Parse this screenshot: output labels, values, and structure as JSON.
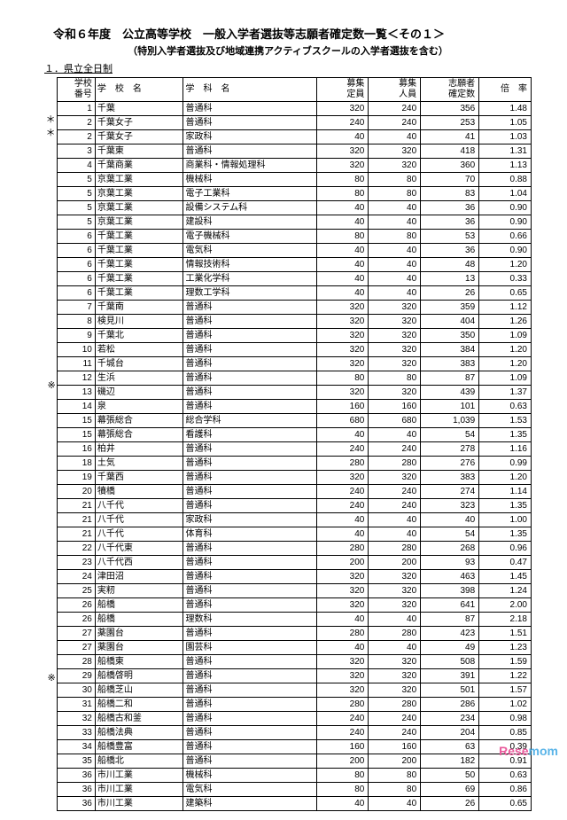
{
  "title": "令和６年度　公立高等学校　一般入学者選抜等志願者確定数一覧＜その１＞",
  "subtitle": "（特別入学者選抜及び地域連携アクティブスクールの入学者選抜を含む）",
  "section": "１．県立全日制",
  "headers": {
    "num": "学校\n番号",
    "school": "学　校　名",
    "dept": "学　科　名",
    "cap": "募集\n定員",
    "rec": "募集\n人員",
    "app": "志願者\n確定数",
    "rate": "倍　率"
  },
  "rows": [
    {
      "mark": "",
      "num": "1",
      "school": "千葉",
      "dept": "普通科",
      "cap": "320",
      "rec": "240",
      "app": "356",
      "rate": "1.48"
    },
    {
      "mark": "＊",
      "num": "2",
      "school": "千葉女子",
      "dept": "普通科",
      "cap": "240",
      "rec": "240",
      "app": "253",
      "rate": "1.05"
    },
    {
      "mark": "＊",
      "num": "2",
      "school": "千葉女子",
      "dept": "家政科",
      "cap": "40",
      "rec": "40",
      "app": "41",
      "rate": "1.03"
    },
    {
      "mark": "",
      "num": "3",
      "school": "千葉東",
      "dept": "普通科",
      "cap": "320",
      "rec": "320",
      "app": "418",
      "rate": "1.31"
    },
    {
      "mark": "",
      "num": "4",
      "school": "千葉商業",
      "dept": "商業科・情報処理科",
      "cap": "320",
      "rec": "320",
      "app": "360",
      "rate": "1.13"
    },
    {
      "mark": "",
      "num": "5",
      "school": "京葉工業",
      "dept": "機械科",
      "cap": "80",
      "rec": "80",
      "app": "70",
      "rate": "0.88"
    },
    {
      "mark": "",
      "num": "5",
      "school": "京葉工業",
      "dept": "電子工業科",
      "cap": "80",
      "rec": "80",
      "app": "83",
      "rate": "1.04"
    },
    {
      "mark": "",
      "num": "5",
      "school": "京葉工業",
      "dept": "設備システム科",
      "cap": "40",
      "rec": "40",
      "app": "36",
      "rate": "0.90"
    },
    {
      "mark": "",
      "num": "5",
      "school": "京葉工業",
      "dept": "建設科",
      "cap": "40",
      "rec": "40",
      "app": "36",
      "rate": "0.90"
    },
    {
      "mark": "",
      "num": "6",
      "school": "千葉工業",
      "dept": "電子機械科",
      "cap": "80",
      "rec": "80",
      "app": "53",
      "rate": "0.66"
    },
    {
      "mark": "",
      "num": "6",
      "school": "千葉工業",
      "dept": "電気科",
      "cap": "40",
      "rec": "40",
      "app": "36",
      "rate": "0.90"
    },
    {
      "mark": "",
      "num": "6",
      "school": "千葉工業",
      "dept": "情報技術科",
      "cap": "40",
      "rec": "40",
      "app": "48",
      "rate": "1.20"
    },
    {
      "mark": "",
      "num": "6",
      "school": "千葉工業",
      "dept": "工業化学科",
      "cap": "40",
      "rec": "40",
      "app": "13",
      "rate": "0.33"
    },
    {
      "mark": "",
      "num": "6",
      "school": "千葉工業",
      "dept": "理数工学科",
      "cap": "40",
      "rec": "40",
      "app": "26",
      "rate": "0.65"
    },
    {
      "mark": "",
      "num": "7",
      "school": "千葉南",
      "dept": "普通科",
      "cap": "320",
      "rec": "320",
      "app": "359",
      "rate": "1.12"
    },
    {
      "mark": "",
      "num": "8",
      "school": "検見川",
      "dept": "普通科",
      "cap": "320",
      "rec": "320",
      "app": "404",
      "rate": "1.26"
    },
    {
      "mark": "",
      "num": "9",
      "school": "千葉北",
      "dept": "普通科",
      "cap": "320",
      "rec": "320",
      "app": "350",
      "rate": "1.09"
    },
    {
      "mark": "",
      "num": "10",
      "school": "若松",
      "dept": "普通科",
      "cap": "320",
      "rec": "320",
      "app": "384",
      "rate": "1.20"
    },
    {
      "mark": "",
      "num": "11",
      "school": "千城台",
      "dept": "普通科",
      "cap": "320",
      "rec": "320",
      "app": "383",
      "rate": "1.20"
    },
    {
      "mark": "",
      "num": "12",
      "school": "生浜",
      "dept": "普通科",
      "cap": "80",
      "rec": "80",
      "app": "87",
      "rate": "1.09"
    },
    {
      "mark": "",
      "num": "13",
      "school": "磯辺",
      "dept": "普通科",
      "cap": "320",
      "rec": "320",
      "app": "439",
      "rate": "1.37"
    },
    {
      "mark": "※",
      "num": "14",
      "school": "泉",
      "dept": "普通科",
      "cap": "160",
      "rec": "160",
      "app": "101",
      "rate": "0.63"
    },
    {
      "mark": "",
      "num": "15",
      "school": "幕張総合",
      "dept": "総合学科",
      "cap": "680",
      "rec": "680",
      "app": "1,039",
      "rate": "1.53"
    },
    {
      "mark": "",
      "num": "15",
      "school": "幕張総合",
      "dept": "看護科",
      "cap": "40",
      "rec": "40",
      "app": "54",
      "rate": "1.35"
    },
    {
      "mark": "",
      "num": "16",
      "school": "柏井",
      "dept": "普通科",
      "cap": "240",
      "rec": "240",
      "app": "278",
      "rate": "1.16"
    },
    {
      "mark": "",
      "num": "18",
      "school": "土気",
      "dept": "普通科",
      "cap": "280",
      "rec": "280",
      "app": "276",
      "rate": "0.99"
    },
    {
      "mark": "",
      "num": "19",
      "school": "千葉西",
      "dept": "普通科",
      "cap": "320",
      "rec": "320",
      "app": "383",
      "rate": "1.20"
    },
    {
      "mark": "",
      "num": "20",
      "school": "犢橋",
      "dept": "普通科",
      "cap": "240",
      "rec": "240",
      "app": "274",
      "rate": "1.14"
    },
    {
      "mark": "",
      "num": "21",
      "school": "八千代",
      "dept": "普通科",
      "cap": "240",
      "rec": "240",
      "app": "323",
      "rate": "1.35"
    },
    {
      "mark": "",
      "num": "21",
      "school": "八千代",
      "dept": "家政科",
      "cap": "40",
      "rec": "40",
      "app": "40",
      "rate": "1.00"
    },
    {
      "mark": "",
      "num": "21",
      "school": "八千代",
      "dept": "体育科",
      "cap": "40",
      "rec": "40",
      "app": "54",
      "rate": "1.35"
    },
    {
      "mark": "",
      "num": "22",
      "school": "八千代東",
      "dept": "普通科",
      "cap": "280",
      "rec": "280",
      "app": "268",
      "rate": "0.96"
    },
    {
      "mark": "",
      "num": "23",
      "school": "八千代西",
      "dept": "普通科",
      "cap": "200",
      "rec": "200",
      "app": "93",
      "rate": "0.47"
    },
    {
      "mark": "",
      "num": "24",
      "school": "津田沼",
      "dept": "普通科",
      "cap": "320",
      "rec": "320",
      "app": "463",
      "rate": "1.45"
    },
    {
      "mark": "",
      "num": "25",
      "school": "実籾",
      "dept": "普通科",
      "cap": "320",
      "rec": "320",
      "app": "398",
      "rate": "1.24"
    },
    {
      "mark": "",
      "num": "26",
      "school": "船橋",
      "dept": "普通科",
      "cap": "320",
      "rec": "320",
      "app": "641",
      "rate": "2.00"
    },
    {
      "mark": "",
      "num": "26",
      "school": "船橋",
      "dept": "理数科",
      "cap": "40",
      "rec": "40",
      "app": "87",
      "rate": "2.18"
    },
    {
      "mark": "",
      "num": "27",
      "school": "薬園台",
      "dept": "普通科",
      "cap": "280",
      "rec": "280",
      "app": "423",
      "rate": "1.51"
    },
    {
      "mark": "",
      "num": "27",
      "school": "薬園台",
      "dept": "園芸科",
      "cap": "40",
      "rec": "40",
      "app": "49",
      "rate": "1.23"
    },
    {
      "mark": "",
      "num": "28",
      "school": "船橋東",
      "dept": "普通科",
      "cap": "320",
      "rec": "320",
      "app": "508",
      "rate": "1.59"
    },
    {
      "mark": "",
      "num": "29",
      "school": "船橋啓明",
      "dept": "普通科",
      "cap": "320",
      "rec": "320",
      "app": "391",
      "rate": "1.22"
    },
    {
      "mark": "",
      "num": "30",
      "school": "船橋芝山",
      "dept": "普通科",
      "cap": "320",
      "rec": "320",
      "app": "501",
      "rate": "1.57"
    },
    {
      "mark": "",
      "num": "31",
      "school": "船橋二和",
      "dept": "普通科",
      "cap": "280",
      "rec": "280",
      "app": "286",
      "rate": "1.02"
    },
    {
      "mark": "※",
      "num": "32",
      "school": "船橋古和釜",
      "dept": "普通科",
      "cap": "240",
      "rec": "240",
      "app": "234",
      "rate": "0.98"
    },
    {
      "mark": "",
      "num": "33",
      "school": "船橋法典",
      "dept": "普通科",
      "cap": "240",
      "rec": "240",
      "app": "204",
      "rate": "0.85"
    },
    {
      "mark": "",
      "num": "34",
      "school": "船橋豊富",
      "dept": "普通科",
      "cap": "160",
      "rec": "160",
      "app": "63",
      "rate": "0.39"
    },
    {
      "mark": "",
      "num": "35",
      "school": "船橋北",
      "dept": "普通科",
      "cap": "200",
      "rec": "200",
      "app": "182",
      "rate": "0.91"
    },
    {
      "mark": "",
      "num": "36",
      "school": "市川工業",
      "dept": "機械科",
      "cap": "80",
      "rec": "80",
      "app": "50",
      "rate": "0.63"
    },
    {
      "mark": "",
      "num": "36",
      "school": "市川工業",
      "dept": "電気科",
      "cap": "80",
      "rec": "80",
      "app": "69",
      "rate": "0.86"
    },
    {
      "mark": "",
      "num": "36",
      "school": "市川工業",
      "dept": "建築科",
      "cap": "40",
      "rec": "40",
      "app": "26",
      "rate": "0.65"
    }
  ],
  "logo": {
    "first": "Rese",
    "second": "mom"
  },
  "colors": {
    "logo1": "#e85a9b",
    "logo2": "#5ab4e8"
  }
}
